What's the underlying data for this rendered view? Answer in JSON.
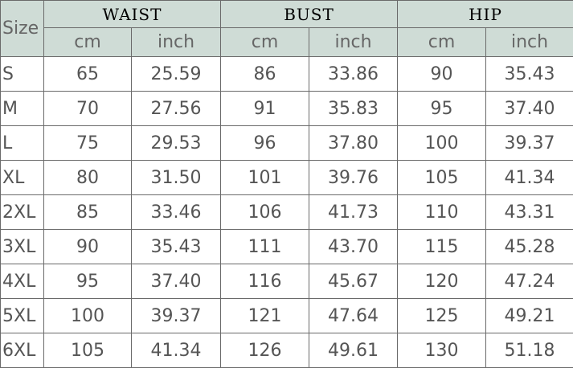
{
  "header": {
    "size_label": "Size",
    "groups": [
      "WAIST",
      "BUST",
      "HIP"
    ],
    "units": [
      "cm",
      "inch"
    ]
  },
  "colors": {
    "header_bg": "#cfdcd6",
    "border": "#6a6a6a"
  },
  "rows": [
    [
      "S",
      "65",
      "25.59",
      "86",
      "33.86",
      "90",
      "35.43"
    ],
    [
      "M",
      "70",
      "27.56",
      "91",
      "35.83",
      "95",
      "37.40"
    ],
    [
      "L",
      "75",
      "29.53",
      "96",
      "37.80",
      "100",
      "39.37"
    ],
    [
      "XL",
      "80",
      "31.50",
      "101",
      "39.76",
      "105",
      "41.34"
    ],
    [
      "2XL",
      "85",
      "33.46",
      "106",
      "41.73",
      "110",
      "43.31"
    ],
    [
      "3XL",
      "90",
      "35.43",
      "111",
      "43.70",
      "115",
      "45.28"
    ],
    [
      "4XL",
      "95",
      "37.40",
      "116",
      "45.67",
      "120",
      "47.24"
    ],
    [
      "5XL",
      "100",
      "39.37",
      "121",
      "47.64",
      "125",
      "49.21"
    ],
    [
      "6XL",
      "105",
      "41.34",
      "126",
      "49.61",
      "130",
      "51.18"
    ]
  ]
}
